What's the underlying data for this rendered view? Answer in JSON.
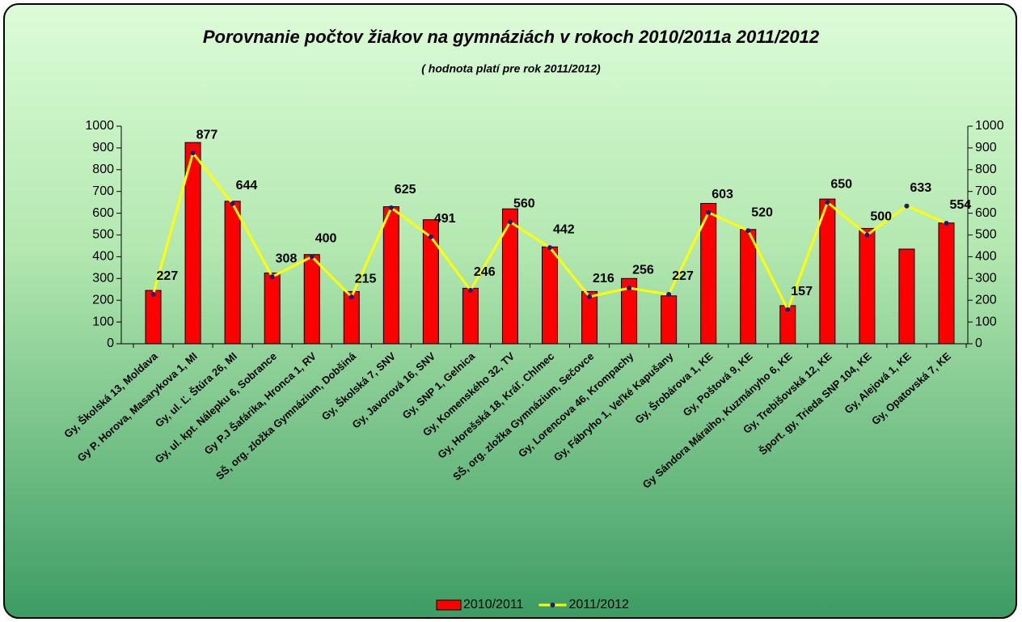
{
  "chart_data": {
    "type": "bar_line",
    "title": "Porovnanie počtov žiakov na gymnáziách v rokoch 2010/2011a 2011/2012",
    "subtitle": "( hodnota platí pre rok 2011/2012)",
    "categories": [
      "Gy,  Školská 13, Moldava",
      "Gy P. Horova, Masarykova 1, MI",
      "Gy, ul. Ľ. Štúra 26, MI",
      "Gy, ul. kpt. Nálepku 6, Sobrance",
      "Gy P.J Šafárika, Hronca 1, RV",
      "SŠ, org. zložka Gymnázium, Dobšiná",
      "Gy, Školská 7, SNV",
      "Gy, Javorová 16, SNV",
      "Gy, SNP 1, Gelnica",
      "Gy, Komenského 32, TV",
      "Gy, Horešská 18, Kráľ. Chlmec",
      "SŠ, org. zložka Gymnázium, Sečovce",
      "Gy, Lorencova 46, Krompachy",
      "Gy, Fábryho 1, Veľké Kapušany",
      "Gy, Šrobárova 1, KE",
      "Gy, Poštová 9, KE",
      "Gy Sándora Máraiho, Kuzmányho 6, KE",
      "Gy, Trebišovská 12, KE",
      "Šport. gy, Trieda SNP 104, KE",
      "Gy, Alejová 1, KE",
      "Gy, Opatovská 7, KE"
    ],
    "series": [
      {
        "name": "2010/2011",
        "color": "#ff0000",
        "type": "bar",
        "values": [
          245,
          925,
          655,
          325,
          410,
          240,
          630,
          570,
          255,
          620,
          445,
          240,
          300,
          220,
          645,
          525,
          175,
          665,
          530,
          435,
          555
        ]
      },
      {
        "name": "2011/2012",
        "color": "#ffff00",
        "type": "line",
        "axis": "y2",
        "values": [
          227,
          877,
          644,
          308,
          400,
          215,
          625,
          491,
          246,
          560,
          442,
          216,
          256,
          227,
          603,
          520,
          157,
          650,
          500,
          633,
          554
        ]
      }
    ],
    "ylim": [
      0,
      1000
    ],
    "yticks": [
      0,
      100,
      200,
      300,
      400,
      500,
      600,
      700,
      800,
      900,
      1000
    ],
    "y2lim": [
      0,
      1000
    ],
    "y2ticks": [
      0,
      100,
      200,
      300,
      400,
      500,
      600,
      700,
      800,
      900,
      1000
    ],
    "legend": "bottom"
  }
}
